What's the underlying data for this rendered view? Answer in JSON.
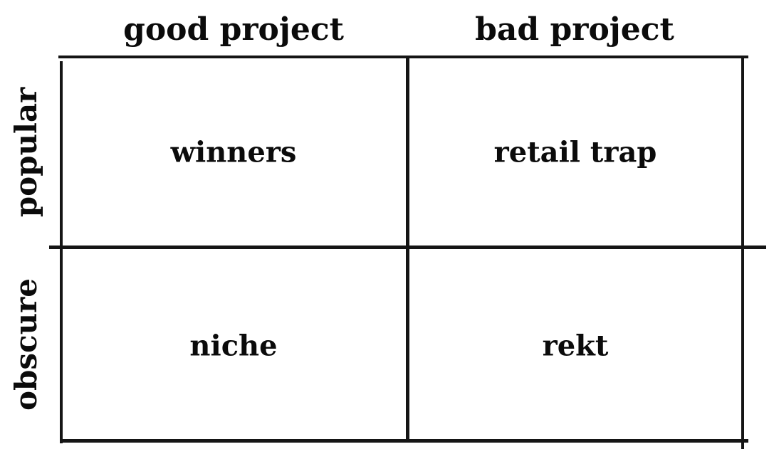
{
  "diagram": {
    "type": "2x2-matrix",
    "column_headers": {
      "good": "good project",
      "bad": "bad project"
    },
    "row_labels": {
      "popular": "popular",
      "obscure": "obscure"
    },
    "cells": {
      "popular_good": "winners",
      "popular_bad": "retail trap",
      "obscure_good": "niche",
      "obscure_bad": "rekt"
    },
    "colors": {
      "background": "#ffffff",
      "text": "#0b0b0b",
      "line": "#151515"
    }
  }
}
